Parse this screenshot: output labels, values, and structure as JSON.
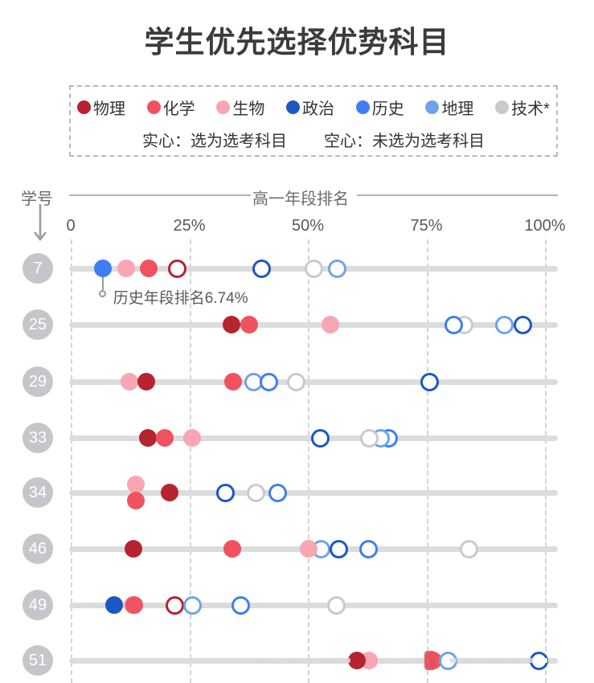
{
  "chart_data": {
    "type": "scatter",
    "title": "学生优先选择优势科目",
    "xlabel": "高一年段排名",
    "ylabel": "学号",
    "x_ticks": [
      "0",
      "25%",
      "50%",
      "75%",
      "100%"
    ],
    "x_tick_pcts": [
      0,
      25,
      50,
      75,
      100
    ],
    "xlim": [
      0,
      100
    ],
    "grid": "vertical-dashed",
    "legend": {
      "subjects": [
        {
          "key": "物理",
          "label": "物理",
          "color": "#b5242f"
        },
        {
          "key": "化学",
          "label": "化学",
          "color": "#f05260"
        },
        {
          "key": "生物",
          "label": "生物",
          "color": "#f7a6b2"
        },
        {
          "key": "政治",
          "label": "政治",
          "color": "#1c57c3"
        },
        {
          "key": "历史",
          "label": "历史",
          "color": "#3f7df2"
        },
        {
          "key": "地理",
          "label": "地理",
          "color": "#6ea3e9"
        },
        {
          "key": "技术",
          "label": "技术*",
          "color": "#c9cacd"
        }
      ],
      "note_solid": "实心：选为选考科目",
      "note_hollow": "空心：未选为选考科目"
    },
    "annotation": {
      "student_id": "7",
      "subject": "历史",
      "x_pct": 6.74,
      "text": "历史年段排名6.74%"
    },
    "students": [
      {
        "id": "7",
        "marks": [
          {
            "s": "历史",
            "pct": 6.74,
            "solid": true
          },
          {
            "s": "生物",
            "pct": 11.7,
            "solid": true
          },
          {
            "s": "化学",
            "pct": 16.4,
            "solid": true
          },
          {
            "s": "物理",
            "pct": 22.5,
            "solid": false
          },
          {
            "s": "政治",
            "pct": 40.3,
            "solid": false
          },
          {
            "s": "技术",
            "pct": 51.2,
            "solid": false
          },
          {
            "s": "地理",
            "pct": 56.2,
            "solid": false
          }
        ]
      },
      {
        "id": "25",
        "marks": [
          {
            "s": "物理",
            "pct": 33.9,
            "solid": true
          },
          {
            "s": "化学",
            "pct": 37.6,
            "solid": true
          },
          {
            "s": "生物",
            "pct": 54.8,
            "solid": true
          },
          {
            "s": "技术",
            "pct": 82.9,
            "solid": false
          },
          {
            "s": "历史",
            "pct": 80.8,
            "solid": false
          },
          {
            "s": "地理",
            "pct": 91.5,
            "solid": false
          },
          {
            "s": "政治",
            "pct": 95.3,
            "solid": false
          }
        ]
      },
      {
        "id": "29",
        "marks": [
          {
            "s": "生物",
            "pct": 12.3,
            "solid": true
          },
          {
            "s": "物理",
            "pct": 15.9,
            "solid": true
          },
          {
            "s": "化学",
            "pct": 34.2,
            "solid": true
          },
          {
            "s": "地理",
            "pct": 38.6,
            "solid": false
          },
          {
            "s": "历史",
            "pct": 41.7,
            "solid": false
          },
          {
            "s": "技术",
            "pct": 47.5,
            "solid": false
          },
          {
            "s": "政治",
            "pct": 75.6,
            "solid": false
          }
        ]
      },
      {
        "id": "33",
        "marks": [
          {
            "s": "物理",
            "pct": 16.3,
            "solid": true
          },
          {
            "s": "化学",
            "pct": 19.9,
            "solid": true
          },
          {
            "s": "生物",
            "pct": 25.6,
            "solid": true
          },
          {
            "s": "政治",
            "pct": 52.6,
            "solid": false
          },
          {
            "s": "历史",
            "pct": 67.0,
            "solid": false
          },
          {
            "s": "地理",
            "pct": 65.3,
            "solid": false
          },
          {
            "s": "技术",
            "pct": 63.0,
            "solid": false
          }
        ]
      },
      {
        "id": "34",
        "marks": [
          {
            "s": "生物",
            "pct": 13.8,
            "solid": true,
            "dy": -10
          },
          {
            "s": "化学",
            "pct": 13.8,
            "solid": true,
            "dy": 10
          },
          {
            "s": "物理",
            "pct": 20.9,
            "solid": true
          },
          {
            "s": "政治",
            "pct": 32.7,
            "solid": false
          },
          {
            "s": "技术",
            "pct": 39.0,
            "solid": false
          },
          {
            "s": "历史",
            "pct": 43.7,
            "solid": false
          }
        ]
      },
      {
        "id": "46",
        "marks": [
          {
            "s": "物理",
            "pct": 13.3,
            "solid": true
          },
          {
            "s": "化学",
            "pct": 34.0,
            "solid": true
          },
          {
            "s": "地理",
            "pct": 52.8,
            "solid": false
          },
          {
            "s": "生物",
            "pct": 50.1,
            "solid": true
          },
          {
            "s": "政治",
            "pct": 56.6,
            "solid": false
          },
          {
            "s": "历史",
            "pct": 62.8,
            "solid": false
          },
          {
            "s": "技术",
            "pct": 84.0,
            "solid": false
          }
        ]
      },
      {
        "id": "49",
        "marks": [
          {
            "s": "政治",
            "pct": 9.1,
            "solid": true
          },
          {
            "s": "生物",
            "pct": 13.0,
            "solid": true
          },
          {
            "s": "化学",
            "pct": 13.4,
            "solid": true
          },
          {
            "s": "物理",
            "pct": 22.0,
            "solid": false
          },
          {
            "s": "地理",
            "pct": 25.7,
            "solid": false
          },
          {
            "s": "历史",
            "pct": 35.8,
            "solid": false
          },
          {
            "s": "技术",
            "pct": 56.0,
            "solid": false
          }
        ]
      },
      {
        "id": "51",
        "marks": [
          {
            "s": "生物",
            "pct": 62.9,
            "solid": true
          },
          {
            "s": "物理",
            "pct": 60.3,
            "solid": true
          },
          {
            "s": "化学",
            "pct": 76.4,
            "solid": true
          },
          {
            "s": "地理",
            "pct": 79.5,
            "solid": false
          },
          {
            "s": "政治",
            "pct": 98.8,
            "solid": false
          }
        ]
      }
    ]
  }
}
